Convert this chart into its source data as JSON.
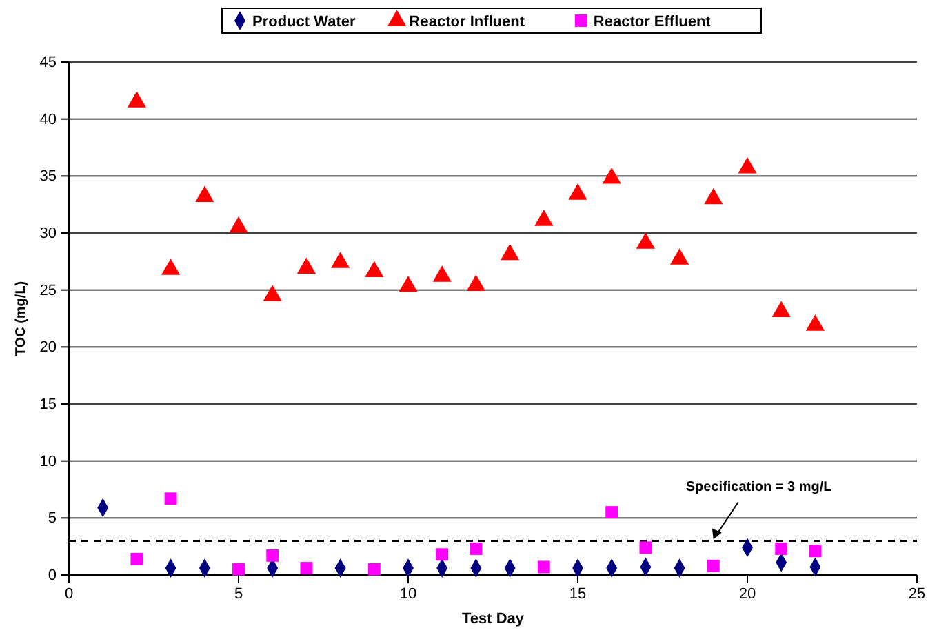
{
  "chart_data": {
    "type": "scatter",
    "xlabel": "Test Day",
    "ylabel": "TOC (mg/L)",
    "xlim": [
      0,
      25
    ],
    "xticks": [
      0,
      5,
      10,
      15,
      20,
      25
    ],
    "ylim": [
      0,
      45
    ],
    "yticks": [
      0,
      5,
      10,
      15,
      20,
      25,
      30,
      35,
      40,
      45
    ],
    "grid": "y",
    "legend": "top",
    "series": [
      {
        "name": "Product Water",
        "color": "#000080",
        "marker": "diamond",
        "x": [
          1,
          3,
          4,
          5,
          6,
          7,
          8,
          9,
          10,
          11,
          12,
          13,
          14,
          15,
          16,
          17,
          18,
          19,
          20,
          21,
          22
        ],
        "values": [
          5.9,
          0.6,
          0.6,
          null,
          0.6,
          null,
          0.6,
          null,
          0.6,
          0.6,
          0.6,
          0.6,
          null,
          0.6,
          0.6,
          0.7,
          0.6,
          null,
          2.4,
          1.1,
          0.7
        ]
      },
      {
        "name": "Reactor Influent",
        "color": "#ff0000",
        "marker": "triangle",
        "x": [
          2,
          3,
          4,
          5,
          6,
          7,
          8,
          9,
          10,
          11,
          12,
          13,
          14,
          15,
          16,
          17,
          18,
          19,
          20,
          21,
          22
        ],
        "values": [
          41.5,
          26.8,
          33.2,
          30.5,
          24.5,
          26.9,
          27.4,
          26.6,
          25.3,
          26.2,
          25.4,
          28.1,
          31.1,
          33.4,
          34.8,
          29.1,
          27.7,
          33.0,
          35.7,
          23.1,
          21.9
        ]
      },
      {
        "name": "Reactor Effluent",
        "color": "#ff00ff",
        "marker": "square",
        "x": [
          2,
          3,
          5,
          6,
          7,
          9,
          11,
          12,
          14,
          16,
          17,
          19,
          21,
          22
        ],
        "values": [
          1.4,
          6.7,
          0.5,
          1.7,
          0.6,
          0.5,
          1.8,
          2.3,
          0.7,
          5.5,
          2.4,
          0.8,
          2.3,
          2.1
        ]
      }
    ],
    "ref_lines": [
      {
        "axis": "y",
        "value": 3,
        "line_style": "dashed",
        "color": "#000000"
      }
    ],
    "annotations": [
      {
        "text": "Specification = 3 mg/L",
        "x": 19,
        "y": 3
      }
    ]
  }
}
